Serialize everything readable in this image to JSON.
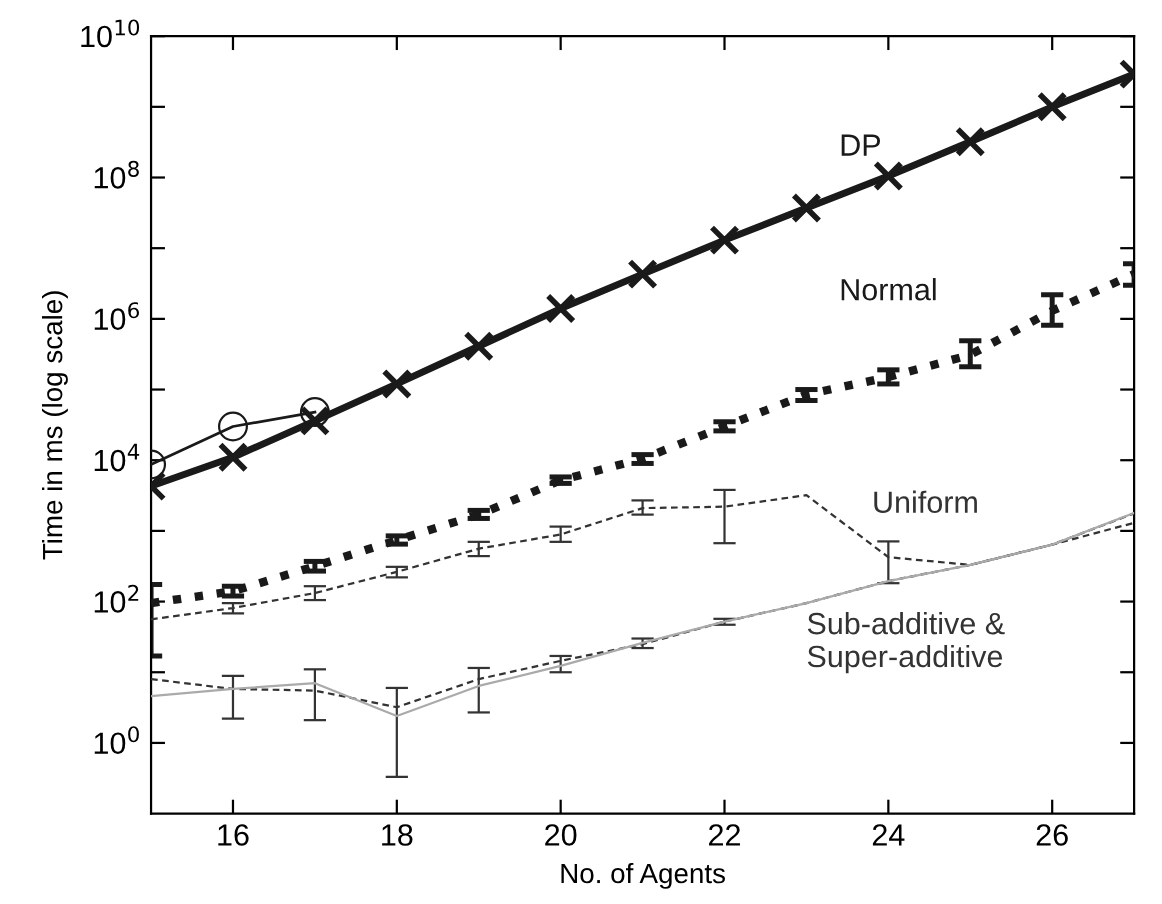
{
  "chart_data": {
    "type": "line",
    "xlabel": "No. of Agents",
    "ylabel": "Time in ms (log scale)",
    "log": "y",
    "x": [
      15,
      16,
      17,
      18,
      19,
      20,
      21,
      22,
      23,
      24,
      25,
      26,
      27
    ],
    "xlim": [
      15,
      27
    ],
    "xticks": [
      16,
      18,
      20,
      22,
      24,
      26
    ],
    "ylim": [
      0.1,
      10000000000
    ],
    "yticks": [
      {
        "value": 1,
        "label": "10$^{0}$"
      },
      {
        "value": 10,
        "label": null
      },
      {
        "value": 100,
        "label": "10$^{2}$"
      },
      {
        "value": 1000,
        "label": null
      },
      {
        "value": 10000,
        "label": "10$^{4}$"
      },
      {
        "value": 100000,
        "label": null
      },
      {
        "value": 1000000,
        "label": "10$^{6}$"
      },
      {
        "value": 10000000,
        "label": null
      },
      {
        "value": 100000000,
        "label": "10$^{8}$"
      },
      {
        "value": 1000000000,
        "label": null
      },
      {
        "value": 10000000000,
        "label": "10$^{10}$"
      }
    ],
    "grid": false,
    "legend": false,
    "series": [
      {
        "name": "DP",
        "color": "#1a1a1a",
        "marker": "cross",
        "line_style": "solid",
        "values": [
          4300,
          11000,
          36000,
          120000,
          410000,
          1400000,
          4300000,
          13000000,
          37000000,
          105000000,
          320000000,
          1000000000,
          2900000000
        ]
      },
      {
        "color": "#1a1a1a",
        "marker": "circle",
        "line_style": "solid",
        "x": [
          15,
          16,
          17
        ],
        "values": [
          8700,
          30000,
          48000
        ]
      },
      {
        "name": "Normal",
        "color": "#1a1a1a",
        "marker": "none",
        "line_style": "dotted",
        "values": [
          95,
          140,
          316,
          740,
          1700,
          5200,
          10500,
          30000,
          85000,
          150000,
          310000,
          1300000,
          4300000
        ],
        "errors": [
          [
            17,
            174
          ],
          [
            120,
            165
          ],
          [
            270,
            370
          ],
          [
            650,
            850
          ],
          [
            1500,
            1950
          ],
          [
            4700,
            5800
          ],
          [
            9000,
            12000
          ],
          [
            26000,
            35000
          ],
          [
            70000,
            100000
          ],
          [
            120000,
            190000
          ],
          [
            210000,
            490000
          ],
          [
            810000,
            2200000
          ],
          [
            3000000,
            6000000
          ]
        ]
      },
      {
        "name": "Uniform",
        "color": "#333333",
        "marker": "none",
        "line_style": "dashed",
        "values": [
          56,
          81,
          132,
          263,
          560,
          890,
          2100,
          2200,
          3200,
          425,
          330,
          640,
          1770
        ],
        "errors": [
          null,
          [
            68,
            95
          ],
          [
            105,
            165
          ],
          [
            220,
            310
          ],
          [
            440,
            700
          ],
          [
            700,
            1150
          ],
          [
            1700,
            2700
          ],
          [
            670,
            3800
          ],
          null,
          [
            182,
            710
          ],
          null,
          null,
          null
        ]
      },
      {
        "name": "Sub-additive &\nSuper-additive",
        "color": "#333333",
        "marker": "none",
        "line_style": "dashed",
        "values": [
          8,
          5.8,
          5.5,
          3.2,
          8,
          14.5,
          25,
          52,
          95,
          195,
          330,
          640,
          1300
        ],
        "errors": [
          null,
          [
            2.2,
            8.9
          ],
          [
            2.1,
            11
          ],
          [
            0.33,
            6
          ],
          [
            2.7,
            11.5
          ],
          [
            10,
            17
          ],
          [
            22,
            30
          ],
          [
            47,
            57
          ],
          null,
          null,
          null,
          null,
          null
        ]
      },
      {
        "color": "#aaaaaa",
        "marker": "none",
        "line_style": "solid",
        "values": [
          4.6,
          5.8,
          7,
          2.4,
          6.4,
          12.3,
          26,
          52,
          95,
          195,
          330,
          640,
          1800
        ]
      }
    ]
  }
}
